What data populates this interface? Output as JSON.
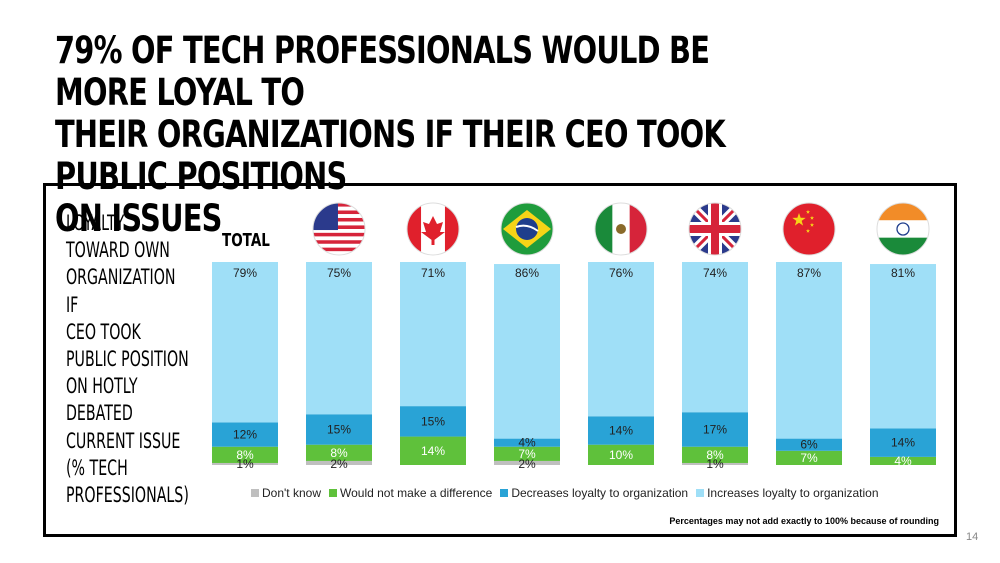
{
  "slide": {
    "headline": "79% OF TECH PROFESSIONALS WOULD BE MORE LOYAL TO\nTHEIR ORGANIZATIONS IF THEIR CEO TOOK PUBLIC POSITIONS\nON ISSUES",
    "page_number": "14",
    "footnote": "Percentages may not add exactly to 100% because of rounding"
  },
  "chart_data": {
    "type": "bar",
    "stacked": true,
    "title": "LOYALTY\nTOWARD OWN\nORGANIZATION IF\nCEO TOOK\nPUBLIC POSITION\nON HOTLY\nDEBATED\nCURRENT ISSUE\n(% TECH\nPROFESSIONALS)",
    "categories": [
      "TOTAL",
      "flag-us",
      "flag-canada",
      "flag-brazil",
      "flag-mexico",
      "flag-uk",
      "flag-china",
      "flag-india"
    ],
    "category_labels_shown": [
      "TOTAL",
      "",
      "",
      "",
      "",
      "",
      "",
      ""
    ],
    "series": [
      {
        "name": "Don't know",
        "color": "#bfbfbf",
        "values": [
          1,
          2,
          0,
          2,
          0,
          1,
          0,
          0
        ]
      },
      {
        "name": "Would not make a difference",
        "color": "#5fc13b",
        "values": [
          8,
          8,
          14,
          7,
          10,
          8,
          7,
          4
        ]
      },
      {
        "name": "Decreases loyalty to organization",
        "color": "#29a3d6",
        "values": [
          12,
          15,
          15,
          4,
          14,
          17,
          6,
          14
        ]
      },
      {
        "name": "Increases loyalty to organization",
        "color": "#9fdff7",
        "values": [
          79,
          75,
          71,
          86,
          76,
          74,
          87,
          81
        ]
      }
    ],
    "data_labels_shown": [
      [
        "1%",
        "2%",
        "",
        "2%",
        "",
        "1%",
        "",
        ""
      ],
      [
        "8%",
        "8%",
        "14%",
        "7%",
        "10%",
        "8%",
        "7%",
        "4%"
      ],
      [
        "12%",
        "15%",
        "15%",
        "4%",
        "14%",
        "17%",
        "6%",
        "14%"
      ],
      [
        "79%",
        "75%",
        "71%",
        "86%",
        "76%",
        "74%",
        "87%",
        "81%"
      ]
    ],
    "ylim": [
      0,
      100
    ],
    "grid": false,
    "legend_position": "bottom"
  }
}
